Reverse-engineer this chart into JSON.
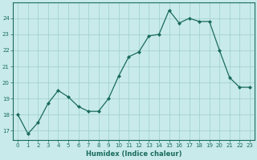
{
  "x": [
    0,
    1,
    2,
    3,
    4,
    5,
    6,
    7,
    8,
    9,
    10,
    11,
    12,
    13,
    14,
    15,
    16,
    17,
    18,
    19,
    20,
    21,
    22,
    23
  ],
  "y": [
    18.0,
    16.8,
    17.5,
    18.7,
    19.5,
    19.1,
    18.5,
    18.2,
    18.2,
    19.0,
    20.4,
    21.6,
    21.9,
    22.9,
    23.0,
    24.5,
    23.7,
    24.0,
    23.8,
    23.8,
    22.0,
    20.3,
    19.7,
    19.7
  ],
  "line_color": "#1a6b5e",
  "marker": "D",
  "marker_size": 2.0,
  "bg_color": "#c8eaea",
  "grid_color": "#9ecece",
  "xlabel": "Humidex (Indice chaleur)",
  "ylabel_ticks": [
    17,
    18,
    19,
    20,
    21,
    22,
    23,
    24
  ],
  "xlim": [
    -0.5,
    23.5
  ],
  "ylim": [
    16.4,
    25.0
  ]
}
